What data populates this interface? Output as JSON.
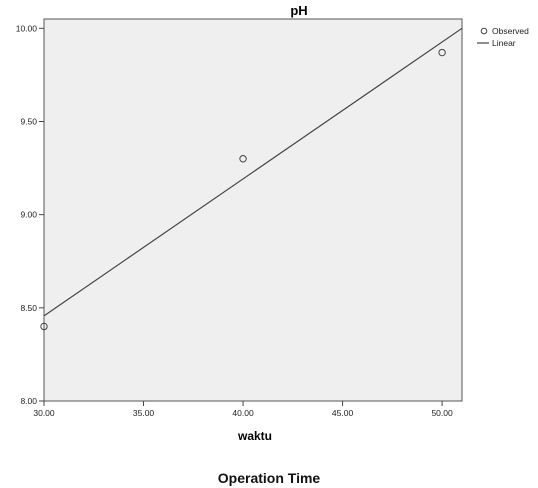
{
  "chart_data": {
    "type": "scatter",
    "title": "pH",
    "xlabel": "waktu",
    "ylabel": "",
    "xlim": [
      30,
      51
    ],
    "ylim": [
      8.0,
      10.05
    ],
    "x_ticks": [
      "30.00",
      "35.00",
      "40.00",
      "45.00",
      "50.00"
    ],
    "y_ticks": [
      "8.00",
      "8.50",
      "9.00",
      "9.50",
      "10.00"
    ],
    "series": [
      {
        "name": "Observed",
        "kind": "points",
        "x": [
          30,
          40,
          50
        ],
        "y": [
          8.4,
          9.3,
          9.87
        ]
      },
      {
        "name": "Linear",
        "kind": "line",
        "x": [
          30,
          51
        ],
        "y": [
          8.457,
          10.0
        ]
      }
    ],
    "legend": "top-right",
    "grid": false,
    "colors": {
      "plot_bg": "#efefef",
      "line": "#444444",
      "marker": "#444444"
    }
  },
  "caption": "Operation Time"
}
